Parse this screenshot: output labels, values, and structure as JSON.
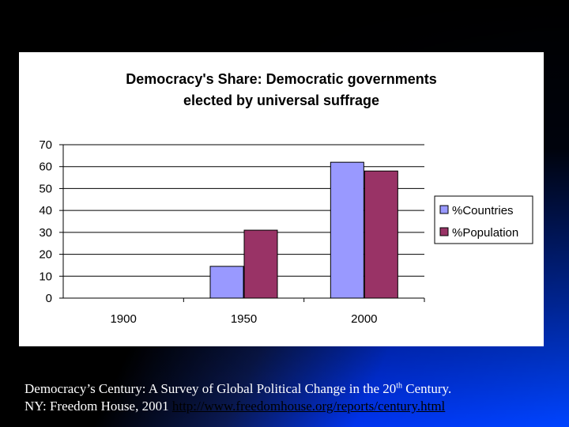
{
  "chart_data": {
    "type": "bar",
    "title_lines": [
      "Democracy's Share: Democratic governments",
      "elected by universal suffrage"
    ],
    "categories": [
      "1900",
      "1950",
      "2000"
    ],
    "series": [
      {
        "name": "%Countries",
        "values": [
          0,
          14.5,
          62
        ],
        "color": "#9999ff"
      },
      {
        "name": "%Population",
        "values": [
          0,
          31,
          58
        ],
        "color": "#993366"
      }
    ],
    "ylim": [
      0,
      70
    ],
    "yticks": [
      0,
      10,
      20,
      30,
      40,
      50,
      60,
      70
    ],
    "grid": true,
    "legend_position": "right"
  },
  "caption": {
    "line1_before_sup": "Democracy’s Century: A Survey of Global Political Change in the 20",
    "line1_sup": "th",
    "line1_after_sup": " Century.",
    "line2_text": "NY: Freedom House, 2001 ",
    "link_text": "http://www.freedomhouse.org/reports/century.html"
  }
}
